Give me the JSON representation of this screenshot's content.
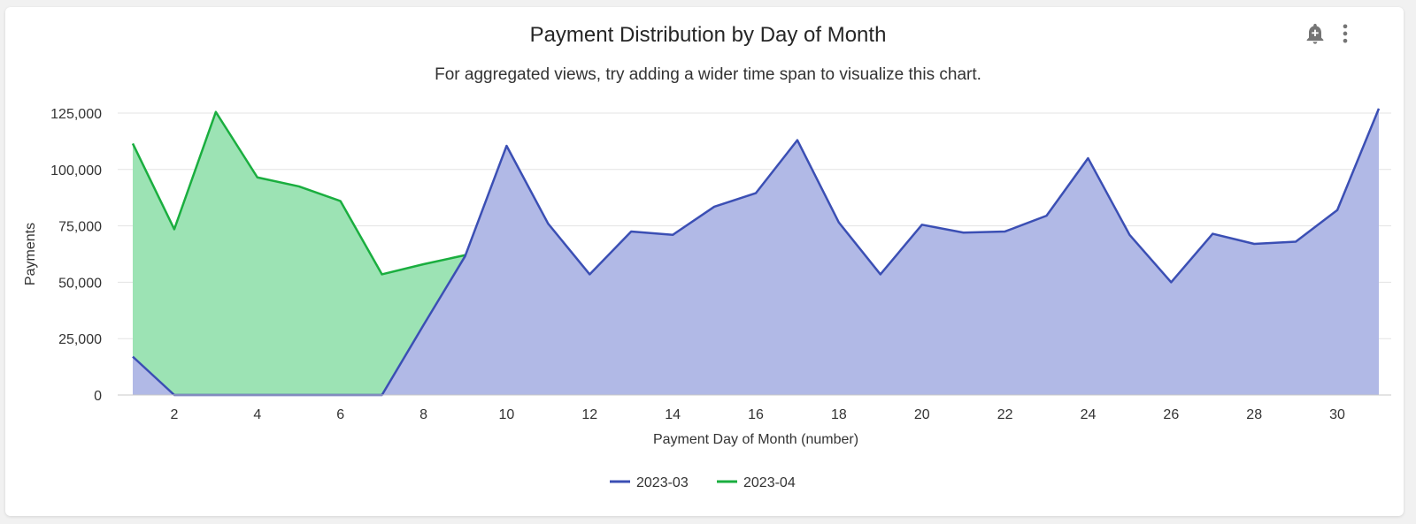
{
  "header": {
    "title": "Payment Distribution by Day of Month",
    "subtitle": "For aggregated views, try adding a wider time span to visualize this chart."
  },
  "toolbar": {
    "alert_icon": "add-alert-icon",
    "menu_icon": "more-vertical-icon"
  },
  "chart_data": {
    "type": "area",
    "title": "Payment Distribution by Day of Month",
    "xlabel": "Payment Day of Month (number)",
    "ylabel": "Payments",
    "xlim": [
      1,
      31
    ],
    "ylim": [
      0,
      125000
    ],
    "xticks": [
      2,
      4,
      6,
      8,
      10,
      12,
      14,
      16,
      18,
      20,
      22,
      24,
      26,
      28,
      30
    ],
    "xtick_labels": [
      "2",
      "4",
      "6",
      "8",
      "10",
      "12",
      "14",
      "16",
      "18",
      "20",
      "22",
      "24",
      "26",
      "28",
      "30"
    ],
    "yticks": [
      0,
      25000,
      50000,
      75000,
      100000,
      125000
    ],
    "ytick_labels": [
      "0",
      "25,000",
      "50,000",
      "75,000",
      "100,000",
      "125,000"
    ],
    "grid": true,
    "legend_position": "bottom",
    "series": [
      {
        "name": "2023-04",
        "color": "#1aae3f",
        "fill": "#9ce3b4",
        "x": [
          1,
          2,
          3,
          4,
          5,
          6,
          7,
          8,
          9
        ],
        "values": [
          111500,
          73500,
          125500,
          96500,
          92500,
          86000,
          53500,
          58000,
          62000
        ]
      },
      {
        "name": "2023-03",
        "color": "#3b4fb4",
        "fill": "#b1b9e6",
        "x": [
          1,
          2,
          3,
          4,
          5,
          6,
          7,
          8,
          9,
          10,
          11,
          12,
          13,
          14,
          15,
          16,
          17,
          18,
          19,
          20,
          21,
          22,
          23,
          24,
          25,
          26,
          27,
          28,
          29,
          30,
          31
        ],
        "values": [
          17000,
          0,
          0,
          0,
          0,
          0,
          0,
          31000,
          61500,
          110500,
          76000,
          53500,
          72500,
          71000,
          83500,
          89500,
          113000,
          76500,
          53500,
          75500,
          72000,
          72500,
          79500,
          105000,
          71000,
          50000,
          71500,
          67000,
          68000,
          82000,
          127000
        ]
      }
    ],
    "legend_order": [
      "2023-03",
      "2023-04"
    ]
  }
}
